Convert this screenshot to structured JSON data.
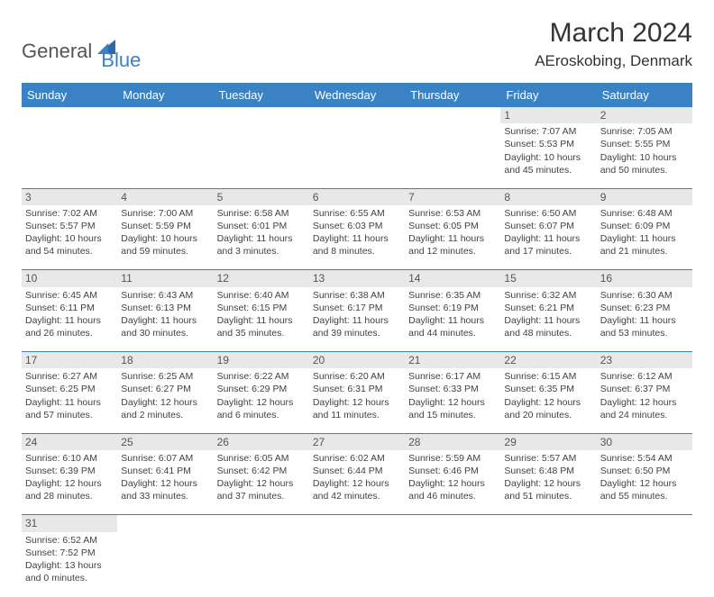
{
  "header": {
    "logo_general": "General",
    "logo_blue": "Blue",
    "month_title": "March 2024",
    "location": "AEroskobing, Denmark"
  },
  "colors": {
    "header_bg": "#3b82c4",
    "header_text": "#ffffff",
    "daynum_bg": "#e8e8e8",
    "border": "#3b82c4",
    "text": "#424242"
  },
  "weekdays": [
    "Sunday",
    "Monday",
    "Tuesday",
    "Wednesday",
    "Thursday",
    "Friday",
    "Saturday"
  ],
  "weeks": [
    [
      null,
      null,
      null,
      null,
      null,
      {
        "n": "1",
        "sunrise": "Sunrise: 7:07 AM",
        "sunset": "Sunset: 5:53 PM",
        "daylight": "Daylight: 10 hours and 45 minutes."
      },
      {
        "n": "2",
        "sunrise": "Sunrise: 7:05 AM",
        "sunset": "Sunset: 5:55 PM",
        "daylight": "Daylight: 10 hours and 50 minutes."
      }
    ],
    [
      {
        "n": "3",
        "sunrise": "Sunrise: 7:02 AM",
        "sunset": "Sunset: 5:57 PM",
        "daylight": "Daylight: 10 hours and 54 minutes."
      },
      {
        "n": "4",
        "sunrise": "Sunrise: 7:00 AM",
        "sunset": "Sunset: 5:59 PM",
        "daylight": "Daylight: 10 hours and 59 minutes."
      },
      {
        "n": "5",
        "sunrise": "Sunrise: 6:58 AM",
        "sunset": "Sunset: 6:01 PM",
        "daylight": "Daylight: 11 hours and 3 minutes."
      },
      {
        "n": "6",
        "sunrise": "Sunrise: 6:55 AM",
        "sunset": "Sunset: 6:03 PM",
        "daylight": "Daylight: 11 hours and 8 minutes."
      },
      {
        "n": "7",
        "sunrise": "Sunrise: 6:53 AM",
        "sunset": "Sunset: 6:05 PM",
        "daylight": "Daylight: 11 hours and 12 minutes."
      },
      {
        "n": "8",
        "sunrise": "Sunrise: 6:50 AM",
        "sunset": "Sunset: 6:07 PM",
        "daylight": "Daylight: 11 hours and 17 minutes."
      },
      {
        "n": "9",
        "sunrise": "Sunrise: 6:48 AM",
        "sunset": "Sunset: 6:09 PM",
        "daylight": "Daylight: 11 hours and 21 minutes."
      }
    ],
    [
      {
        "n": "10",
        "sunrise": "Sunrise: 6:45 AM",
        "sunset": "Sunset: 6:11 PM",
        "daylight": "Daylight: 11 hours and 26 minutes."
      },
      {
        "n": "11",
        "sunrise": "Sunrise: 6:43 AM",
        "sunset": "Sunset: 6:13 PM",
        "daylight": "Daylight: 11 hours and 30 minutes."
      },
      {
        "n": "12",
        "sunrise": "Sunrise: 6:40 AM",
        "sunset": "Sunset: 6:15 PM",
        "daylight": "Daylight: 11 hours and 35 minutes."
      },
      {
        "n": "13",
        "sunrise": "Sunrise: 6:38 AM",
        "sunset": "Sunset: 6:17 PM",
        "daylight": "Daylight: 11 hours and 39 minutes."
      },
      {
        "n": "14",
        "sunrise": "Sunrise: 6:35 AM",
        "sunset": "Sunset: 6:19 PM",
        "daylight": "Daylight: 11 hours and 44 minutes."
      },
      {
        "n": "15",
        "sunrise": "Sunrise: 6:32 AM",
        "sunset": "Sunset: 6:21 PM",
        "daylight": "Daylight: 11 hours and 48 minutes."
      },
      {
        "n": "16",
        "sunrise": "Sunrise: 6:30 AM",
        "sunset": "Sunset: 6:23 PM",
        "daylight": "Daylight: 11 hours and 53 minutes."
      }
    ],
    [
      {
        "n": "17",
        "sunrise": "Sunrise: 6:27 AM",
        "sunset": "Sunset: 6:25 PM",
        "daylight": "Daylight: 11 hours and 57 minutes."
      },
      {
        "n": "18",
        "sunrise": "Sunrise: 6:25 AM",
        "sunset": "Sunset: 6:27 PM",
        "daylight": "Daylight: 12 hours and 2 minutes."
      },
      {
        "n": "19",
        "sunrise": "Sunrise: 6:22 AM",
        "sunset": "Sunset: 6:29 PM",
        "daylight": "Daylight: 12 hours and 6 minutes."
      },
      {
        "n": "20",
        "sunrise": "Sunrise: 6:20 AM",
        "sunset": "Sunset: 6:31 PM",
        "daylight": "Daylight: 12 hours and 11 minutes."
      },
      {
        "n": "21",
        "sunrise": "Sunrise: 6:17 AM",
        "sunset": "Sunset: 6:33 PM",
        "daylight": "Daylight: 12 hours and 15 minutes."
      },
      {
        "n": "22",
        "sunrise": "Sunrise: 6:15 AM",
        "sunset": "Sunset: 6:35 PM",
        "daylight": "Daylight: 12 hours and 20 minutes."
      },
      {
        "n": "23",
        "sunrise": "Sunrise: 6:12 AM",
        "sunset": "Sunset: 6:37 PM",
        "daylight": "Daylight: 12 hours and 24 minutes."
      }
    ],
    [
      {
        "n": "24",
        "sunrise": "Sunrise: 6:10 AM",
        "sunset": "Sunset: 6:39 PM",
        "daylight": "Daylight: 12 hours and 28 minutes."
      },
      {
        "n": "25",
        "sunrise": "Sunrise: 6:07 AM",
        "sunset": "Sunset: 6:41 PM",
        "daylight": "Daylight: 12 hours and 33 minutes."
      },
      {
        "n": "26",
        "sunrise": "Sunrise: 6:05 AM",
        "sunset": "Sunset: 6:42 PM",
        "daylight": "Daylight: 12 hours and 37 minutes."
      },
      {
        "n": "27",
        "sunrise": "Sunrise: 6:02 AM",
        "sunset": "Sunset: 6:44 PM",
        "daylight": "Daylight: 12 hours and 42 minutes."
      },
      {
        "n": "28",
        "sunrise": "Sunrise: 5:59 AM",
        "sunset": "Sunset: 6:46 PM",
        "daylight": "Daylight: 12 hours and 46 minutes."
      },
      {
        "n": "29",
        "sunrise": "Sunrise: 5:57 AM",
        "sunset": "Sunset: 6:48 PM",
        "daylight": "Daylight: 12 hours and 51 minutes."
      },
      {
        "n": "30",
        "sunrise": "Sunrise: 5:54 AM",
        "sunset": "Sunset: 6:50 PM",
        "daylight": "Daylight: 12 hours and 55 minutes."
      }
    ],
    [
      {
        "n": "31",
        "sunrise": "Sunrise: 6:52 AM",
        "sunset": "Sunset: 7:52 PM",
        "daylight": "Daylight: 13 hours and 0 minutes."
      },
      null,
      null,
      null,
      null,
      null,
      null
    ]
  ]
}
